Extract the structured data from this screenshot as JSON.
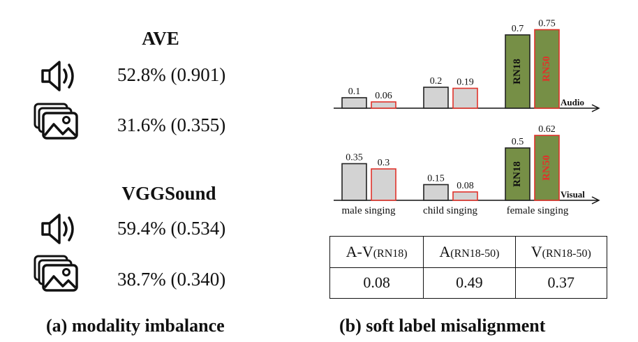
{
  "panel_a": {
    "datasets": [
      {
        "name": "AVE",
        "audio_stat": "52.8% (0.901)",
        "visual_stat": "31.6% (0.355)"
      },
      {
        "name": "VGGSound",
        "audio_stat": "59.4% (0.534)",
        "visual_stat": "38.7% (0.340)"
      }
    ],
    "caption": "(a) modality imbalance"
  },
  "panel_b": {
    "caption": "(b) soft label misalignment",
    "table": {
      "headers": [
        {
          "main": "A-V",
          "sub": "(RN18)"
        },
        {
          "main": "A",
          "sub": "(RN18-50)"
        },
        {
          "main": "V",
          "sub": "(RN18-50)"
        }
      ],
      "values": [
        "0.08",
        "0.49",
        "0.37"
      ]
    }
  },
  "chart_data": [
    {
      "type": "bar",
      "title": "Audio",
      "categories": [
        "male singing",
        "child singing",
        "female singing"
      ],
      "series": [
        {
          "name": "RN18",
          "values": [
            0.1,
            0.2,
            0.7
          ]
        },
        {
          "name": "RN50",
          "values": [
            0.06,
            0.19,
            0.75
          ]
        }
      ],
      "value_labels": [
        "0.1",
        "0.06",
        "0.2",
        "0.19",
        "0.7",
        "0.75"
      ],
      "bar_text": [
        "RN18",
        "RN50"
      ],
      "ylim": [
        0,
        0.8
      ]
    },
    {
      "type": "bar",
      "title": "Visual",
      "categories": [
        "male singing",
        "child singing",
        "female singing"
      ],
      "series": [
        {
          "name": "RN18",
          "values": [
            0.35,
            0.15,
            0.5
          ]
        },
        {
          "name": "RN50",
          "values": [
            0.3,
            0.08,
            0.62
          ]
        }
      ],
      "value_labels": [
        "0.35",
        "0.3",
        "0.15",
        "0.08",
        "0.5",
        "0.62"
      ],
      "bar_text": [
        "RN18",
        "RN50"
      ],
      "ylim": [
        0,
        0.8
      ]
    }
  ],
  "colors": {
    "rn18_fill": "#d3d3d3",
    "rn18_stroke": "#222222",
    "rn50_fill": "#d3d3d3",
    "rn50_stroke": "#e0322a",
    "highlight_fill": "#768f46",
    "highlight_text_rn18": "#111111",
    "highlight_text_rn50": "#e0322a"
  }
}
